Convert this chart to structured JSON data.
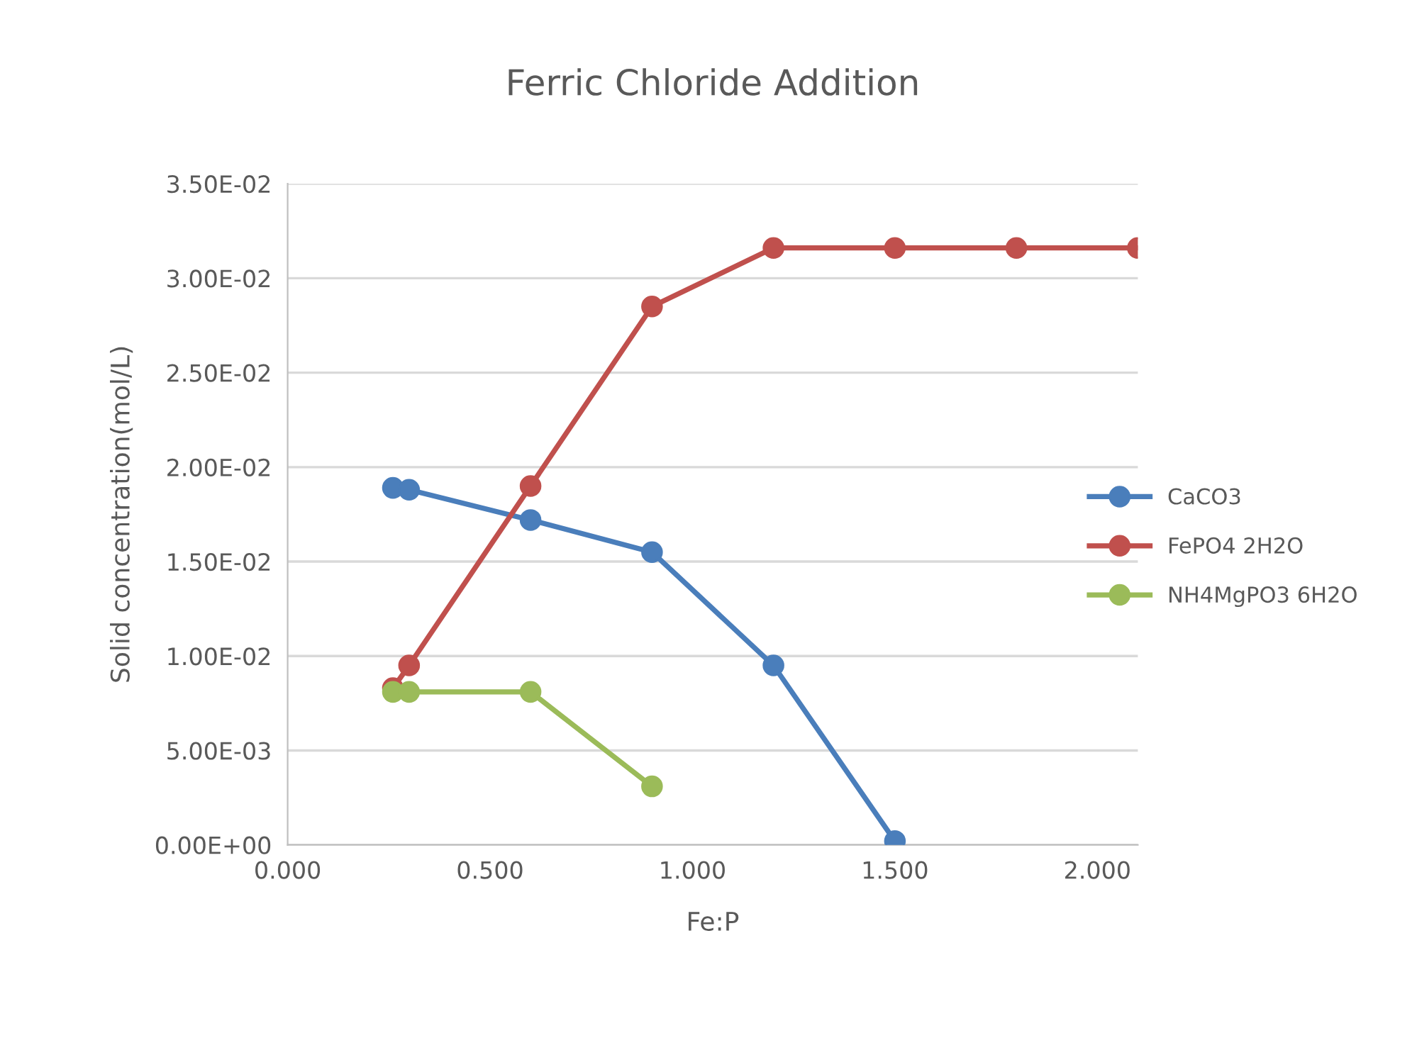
{
  "chart_data": {
    "type": "line",
    "title": "Ferric Chloride Addition",
    "xlabel": "Fe:P",
    "ylabel": "Solid concentration(mol/L)",
    "xlim": [
      0,
      2.1
    ],
    "xticks": [
      {
        "value": 0,
        "label": "0.000"
      },
      {
        "value": 0.5,
        "label": "0.500"
      },
      {
        "value": 1,
        "label": "1.000"
      },
      {
        "value": 1.5,
        "label": "1.500"
      },
      {
        "value": 2,
        "label": "2.000"
      }
    ],
    "ylim": [
      0,
      0.035
    ],
    "yticks": [
      {
        "value": 0,
        "label": "0.00E+00"
      },
      {
        "value": 0.005,
        "label": "5.00E-03"
      },
      {
        "value": 0.01,
        "label": "1.00E-02"
      },
      {
        "value": 0.015,
        "label": "1.50E-02"
      },
      {
        "value": 0.02,
        "label": "2.00E-02"
      },
      {
        "value": 0.025,
        "label": "2.50E-02"
      },
      {
        "value": 0.03,
        "label": "3.00E-02"
      },
      {
        "value": 0.035,
        "label": "3.50E-02"
      }
    ],
    "grid": "y",
    "legend": "right",
    "marker": "circle",
    "series": [
      {
        "name": "CaCO3",
        "color": "#4a7ebb",
        "x": [
          0.26,
          0.3,
          0.6,
          0.9,
          1.2,
          1.5
        ],
        "values": [
          0.0189,
          0.0188,
          0.0172,
          0.0155,
          0.0095,
          0.0002
        ]
      },
      {
        "name": "FePO4 2H2O",
        "color": "#c0504d",
        "x": [
          0.26,
          0.3,
          0.6,
          0.9,
          1.2,
          1.5,
          1.8,
          2.1
        ],
        "values": [
          0.0083,
          0.0095,
          0.019,
          0.0285,
          0.0316,
          0.0316,
          0.0316,
          0.0316
        ]
      },
      {
        "name": "NH4MgPO3 6H2O",
        "color": "#9bbb59",
        "x": [
          0.26,
          0.3,
          0.6,
          0.9
        ],
        "values": [
          0.0081,
          0.0081,
          0.0081,
          0.0031
        ]
      }
    ]
  }
}
